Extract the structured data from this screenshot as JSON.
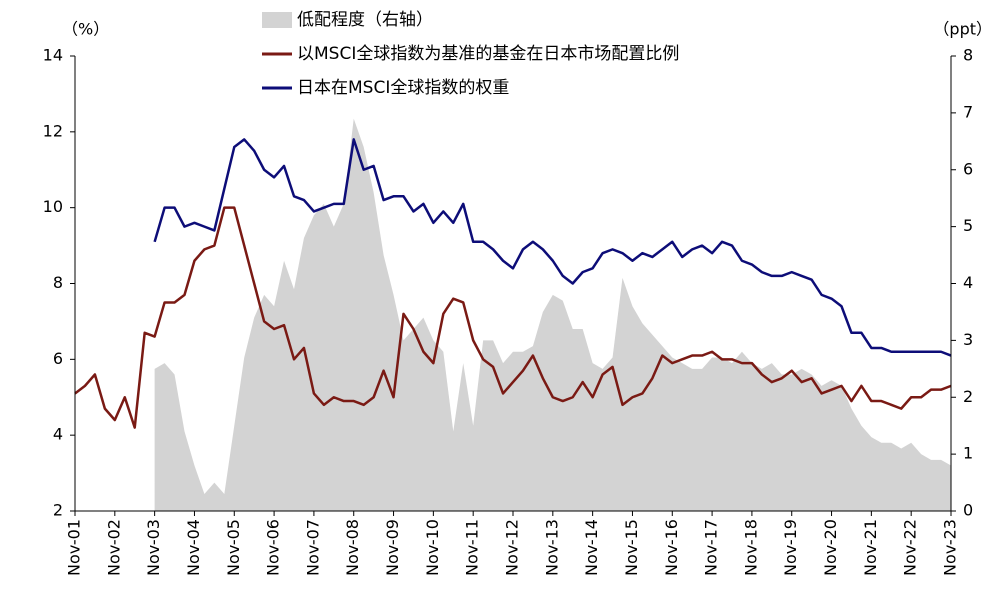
{
  "chart_data": {
    "type": "line",
    "y_label": "（%）",
    "y2_label": "（ppt）",
    "categories": [
      "Nov-01",
      null,
      null,
      null,
      "Nov-02",
      null,
      null,
      null,
      "Nov-03",
      null,
      null,
      null,
      "Nov-04",
      null,
      null,
      null,
      "Nov-05",
      null,
      null,
      null,
      "Nov-06",
      null,
      null,
      null,
      "Nov-07",
      null,
      null,
      null,
      "Nov-08",
      null,
      null,
      null,
      "Nov-09",
      null,
      null,
      null,
      "Nov-10",
      null,
      null,
      null,
      "Nov-11",
      null,
      null,
      null,
      "Nov-12",
      null,
      null,
      null,
      "Nov-13",
      null,
      null,
      null,
      "Nov-14",
      null,
      null,
      null,
      "Nov-15",
      null,
      null,
      null,
      "Nov-16",
      null,
      null,
      null,
      "Nov-17",
      null,
      null,
      null,
      "Nov-18",
      null,
      null,
      null,
      "Nov-19",
      null,
      null,
      null,
      "Nov-20",
      null,
      null,
      null,
      "Nov-21",
      null,
      null,
      null,
      "Nov-22",
      null,
      null,
      null,
      "Nov-23"
    ],
    "series": [
      {
        "name": "低配程度（右轴）",
        "type": "area",
        "axis": "y2",
        "color": "#d3d3d3",
        "values": [
          null,
          null,
          null,
          null,
          null,
          null,
          null,
          null,
          2.5,
          2.6,
          2.4,
          1.4,
          0.8,
          0.3,
          0.5,
          0.3,
          1.5,
          2.7,
          3.4,
          3.8,
          3.6,
          4.4,
          3.9,
          4.8,
          5.2,
          5.4,
          5.0,
          5.4,
          6.9,
          6.4,
          5.6,
          4.5,
          3.8,
          3.0,
          3.2,
          3.4,
          3.0,
          2.8,
          1.4,
          2.6,
          1.5,
          3.0,
          3.0,
          2.6,
          2.8,
          2.8,
          2.9,
          3.5,
          3.8,
          3.7,
          3.2,
          3.2,
          2.6,
          2.5,
          2.7,
          4.1,
          3.6,
          3.3,
          3.1,
          2.9,
          2.7,
          2.6,
          2.5,
          2.5,
          2.7,
          2.7,
          2.6,
          2.8,
          2.6,
          2.5,
          2.6,
          2.4,
          2.4,
          2.5,
          2.4,
          2.2,
          2.3,
          2.2,
          1.8,
          1.5,
          1.3,
          1.2,
          1.2,
          1.1,
          1.2,
          1.0,
          0.9,
          0.9,
          0.8
        ]
      },
      {
        "name": "以MSCI全球指数为基准的基金在日本市场配置比例",
        "type": "line",
        "color": "#7a1a14",
        "values": [
          5.1,
          5.3,
          5.6,
          4.7,
          4.4,
          5.0,
          4.2,
          6.7,
          6.6,
          7.5,
          7.5,
          7.7,
          8.6,
          8.9,
          9.0,
          10.0,
          10.0,
          9.0,
          8.0,
          7.0,
          6.8,
          6.9,
          6.0,
          6.3,
          5.1,
          4.8,
          5.0,
          4.9,
          4.9,
          4.8,
          5.0,
          5.7,
          5.0,
          7.2,
          6.8,
          6.2,
          5.9,
          7.2,
          7.6,
          7.5,
          6.5,
          6.0,
          5.8,
          5.1,
          5.4,
          5.7,
          6.1,
          5.5,
          5.0,
          4.9,
          5.0,
          5.4,
          5.0,
          5.6,
          5.8,
          4.8,
          5.0,
          5.1,
          5.5,
          6.1,
          5.9,
          6.0,
          6.1,
          6.1,
          6.2,
          6.0,
          6.0,
          5.9,
          5.9,
          5.6,
          5.4,
          5.5,
          5.7,
          5.4,
          5.5,
          5.1,
          5.2,
          5.3,
          4.9,
          5.3,
          4.9,
          4.9,
          4.8,
          4.7,
          5.0,
          5.0,
          5.2,
          5.2,
          5.3
        ]
      },
      {
        "name": "日本在MSCI全球指数的权重",
        "type": "line",
        "color": "#0d0d78",
        "values": [
          null,
          null,
          null,
          null,
          null,
          null,
          null,
          null,
          9.1,
          10.0,
          10.0,
          9.5,
          9.6,
          9.5,
          9.4,
          10.5,
          11.6,
          11.8,
          11.5,
          11.0,
          10.8,
          11.1,
          10.3,
          10.2,
          9.9,
          10.0,
          10.1,
          10.1,
          11.8,
          11.0,
          11.1,
          10.2,
          10.3,
          10.3,
          9.9,
          10.1,
          9.6,
          9.9,
          9.6,
          10.1,
          9.1,
          9.1,
          8.9,
          8.6,
          8.4,
          8.9,
          9.1,
          8.9,
          8.6,
          8.2,
          8.0,
          8.3,
          8.4,
          8.8,
          8.9,
          8.8,
          8.6,
          8.8,
          8.7,
          8.9,
          9.1,
          8.7,
          8.9,
          9.0,
          8.8,
          9.1,
          9.0,
          8.6,
          8.5,
          8.3,
          8.2,
          8.2,
          8.3,
          8.2,
          8.1,
          7.7,
          7.6,
          7.4,
          6.7,
          6.7,
          6.3,
          6.3,
          6.2,
          6.2,
          6.2,
          6.2,
          6.2,
          6.2,
          6.1
        ]
      }
    ],
    "ylim": [
      2,
      14
    ],
    "yticks": [
      2,
      4,
      6,
      8,
      10,
      12,
      14
    ],
    "y2lim": [
      0,
      8
    ],
    "y2ticks": [
      0,
      1,
      2,
      3,
      4,
      5,
      6,
      7,
      8
    ],
    "grid": false
  }
}
